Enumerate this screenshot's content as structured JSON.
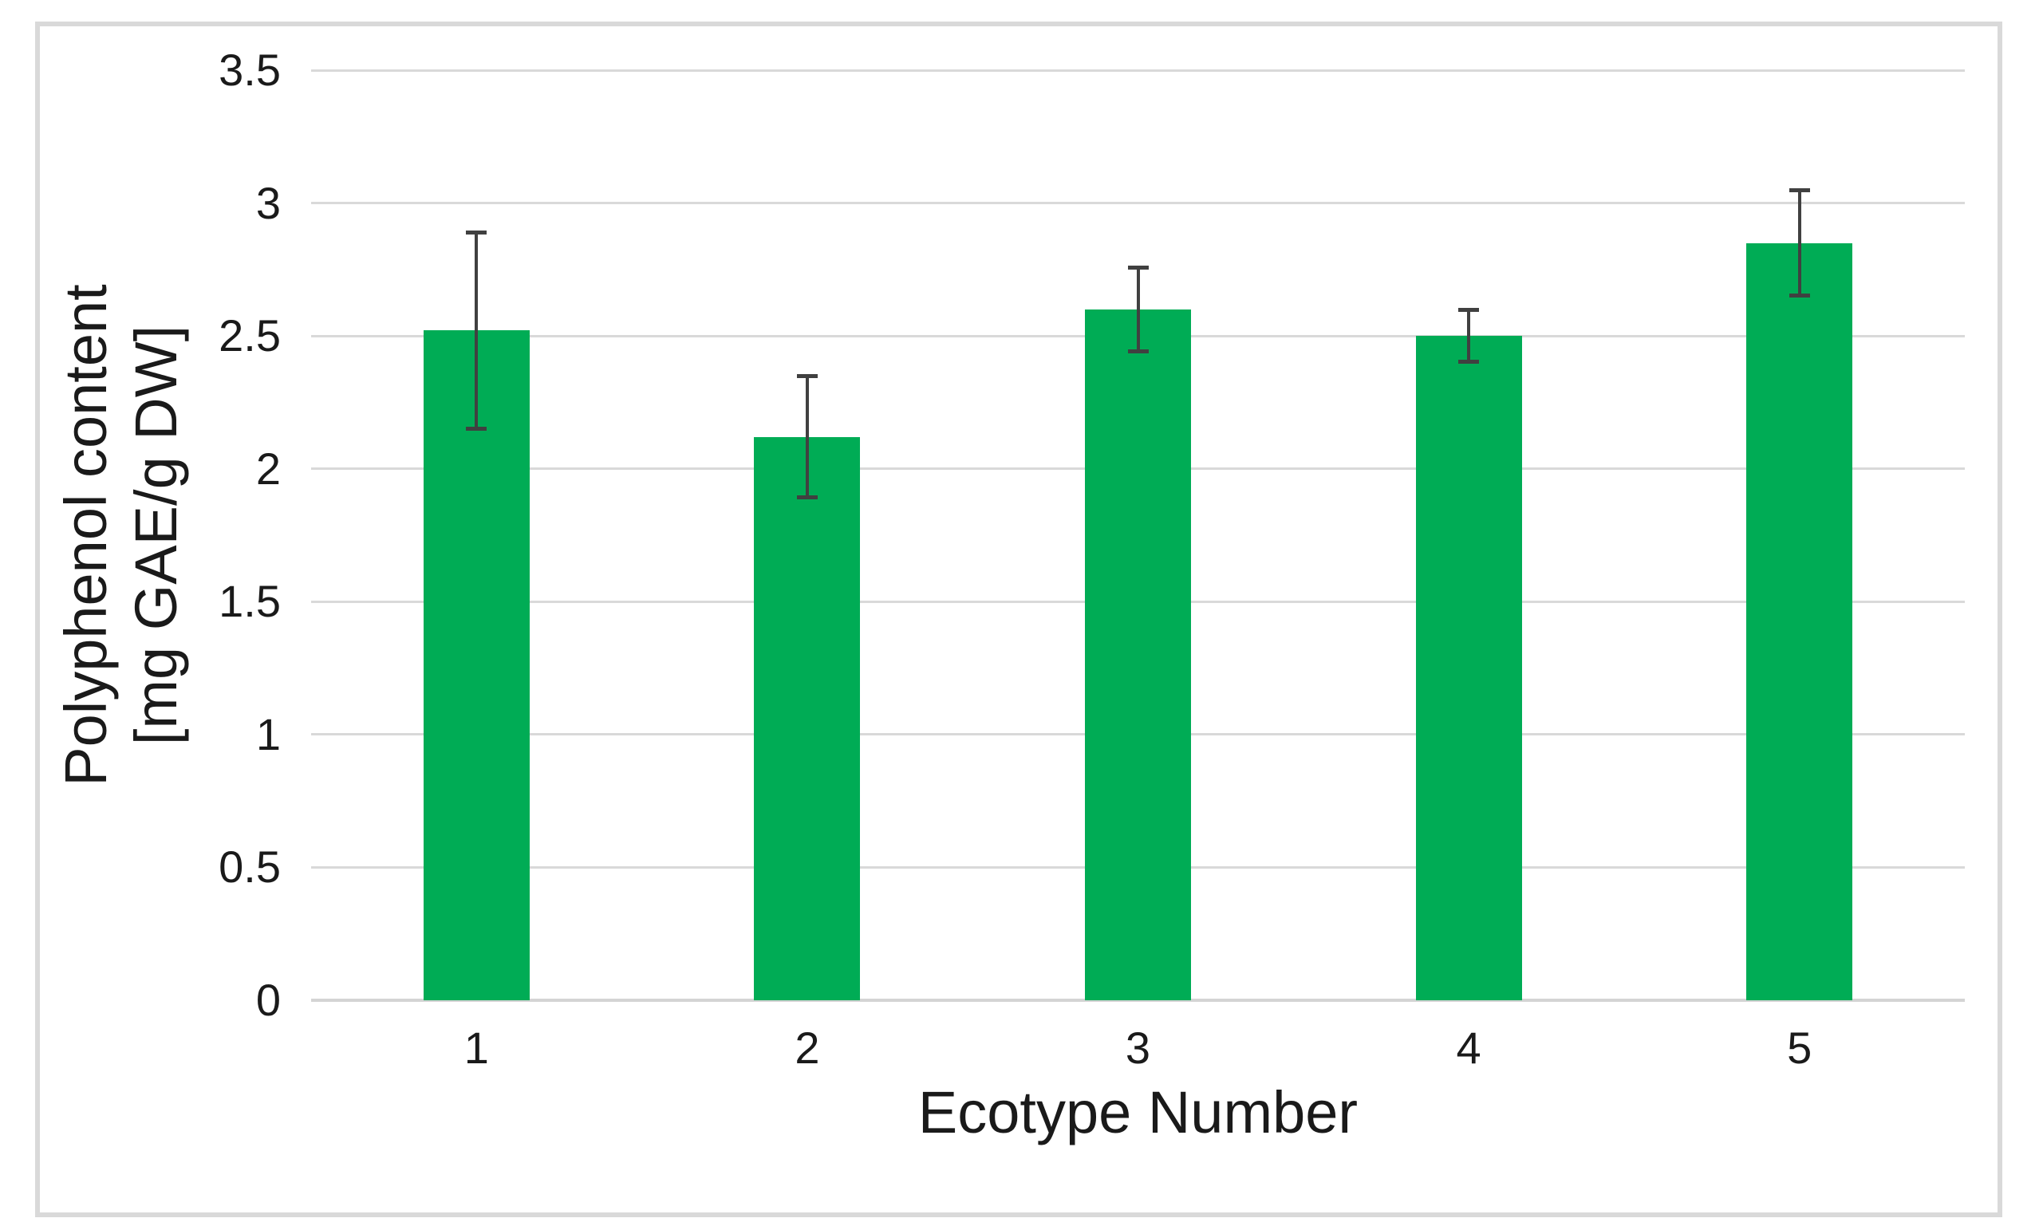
{
  "figure": {
    "background": "#FFFFFF",
    "border_color": "#D9D9D9",
    "text_color": "#1A1A1A"
  },
  "chart_data": {
    "type": "bar",
    "title": "",
    "categories": [
      "1",
      "2",
      "3",
      "4",
      "5"
    ],
    "series": [
      {
        "values": [
          2.52,
          2.12,
          2.6,
          2.5,
          2.85
        ],
        "errors": [
          0.37,
          0.23,
          0.16,
          0.1,
          0.2
        ]
      }
    ],
    "xlabel": "Ecotype Number",
    "ylabel_lines": [
      "Polyphenol content",
      "[mg GAE/g DW]"
    ],
    "ylim": [
      0,
      3.5
    ],
    "yticks": [
      {
        "value": 0,
        "label": "0"
      },
      {
        "value": 0.5,
        "label": "0.5"
      },
      {
        "value": 1,
        "label": "1"
      },
      {
        "value": 1.5,
        "label": "1.5"
      },
      {
        "value": 2,
        "label": "2"
      },
      {
        "value": 2.5,
        "label": "2.5"
      },
      {
        "value": 3,
        "label": "3"
      },
      {
        "value": 3.5,
        "label": "3.5"
      }
    ],
    "grid": true,
    "legend": "none",
    "bar_color": "#00AC55",
    "error_bar_color": "#404040",
    "gridline_color": "#D9D9D9",
    "axis_line_color": "#D4D4D4"
  }
}
